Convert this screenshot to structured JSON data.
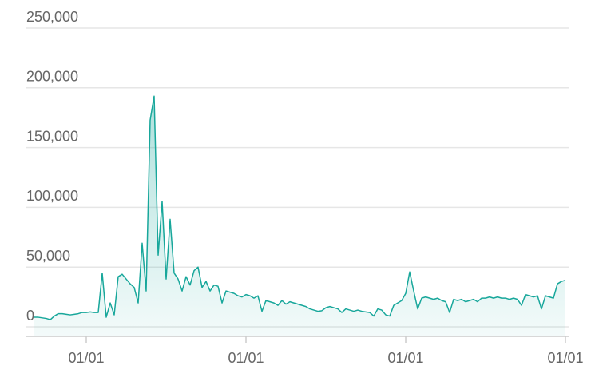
{
  "chart_data": {
    "type": "area",
    "categories": [
      null,
      null,
      null,
      null,
      null,
      null,
      null,
      null,
      null,
      null,
      null,
      null,
      null,
      "01/01",
      null,
      null,
      null,
      null,
      null,
      null,
      null,
      null,
      null,
      null,
      null,
      null,
      null,
      null,
      null,
      null,
      null,
      null,
      null,
      null,
      null,
      null,
      null,
      null,
      null,
      null,
      null,
      null,
      null,
      null,
      null,
      null,
      null,
      null,
      null,
      null,
      null,
      null,
      null,
      "01/01",
      null,
      null,
      null,
      null,
      null,
      null,
      null,
      null,
      null,
      null,
      null,
      null,
      null,
      null,
      null,
      null,
      null,
      null,
      null,
      null,
      null,
      null,
      null,
      null,
      null,
      null,
      null,
      null,
      null,
      null,
      null,
      null,
      null,
      null,
      null,
      null,
      null,
      null,
      null,
      "01/01",
      null,
      null,
      null,
      null,
      null,
      null,
      null,
      null,
      null,
      null,
      null,
      null,
      null,
      null,
      null,
      null,
      null,
      null,
      null,
      null,
      null,
      null,
      null,
      null,
      null,
      null,
      null,
      null,
      null,
      null,
      null,
      null,
      null,
      null,
      null,
      null,
      null,
      null,
      null,
      "01/01"
    ],
    "values": [
      8000,
      8000,
      7500,
      7000,
      6000,
      9000,
      11000,
      11000,
      10500,
      10000,
      10500,
      11000,
      12000,
      12000,
      12500,
      12000,
      12000,
      45000,
      8000,
      20000,
      10000,
      42000,
      44000,
      40000,
      36000,
      33000,
      20000,
      70000,
      30000,
      173000,
      193000,
      60000,
      105000,
      40000,
      90000,
      45000,
      40000,
      30000,
      42000,
      35000,
      47000,
      50000,
      33000,
      38000,
      30000,
      35000,
      34000,
      20000,
      30000,
      29000,
      28000,
      26000,
      25000,
      27000,
      26000,
      24000,
      26000,
      13000,
      22000,
      21000,
      20000,
      18000,
      22000,
      19000,
      21000,
      20000,
      19000,
      18000,
      17000,
      15000,
      14000,
      13000,
      13500,
      16000,
      17000,
      16000,
      15000,
      12000,
      15000,
      14000,
      13000,
      14000,
      13000,
      12500,
      12000,
      9000,
      15000,
      14000,
      10000,
      9000,
      18000,
      20000,
      22000,
      28000,
      46000,
      30000,
      15000,
      24000,
      25000,
      24000,
      23000,
      24000,
      22000,
      21000,
      12000,
      23000,
      22000,
      23000,
      21000,
      22000,
      23000,
      21000,
      24000,
      24000,
      25000,
      24000,
      25000,
      24000,
      24000,
      23000,
      24000,
      23000,
      18000,
      27000,
      26000,
      25000,
      26000,
      15000,
      26000,
      25000,
      24000,
      36000,
      38000,
      39000
    ],
    "color": "#18a79b",
    "ylim": [
      -8000,
      250000
    ],
    "yticks": [
      {
        "value": 0,
        "label": "0"
      },
      {
        "value": 50000,
        "label": "50,000"
      },
      {
        "value": 100000,
        "label": "100,000"
      },
      {
        "value": 150000,
        "label": "150,000"
      },
      {
        "value": 200000,
        "label": "200,000"
      },
      {
        "value": 250000,
        "label": "250,000"
      }
    ],
    "grid": true
  }
}
